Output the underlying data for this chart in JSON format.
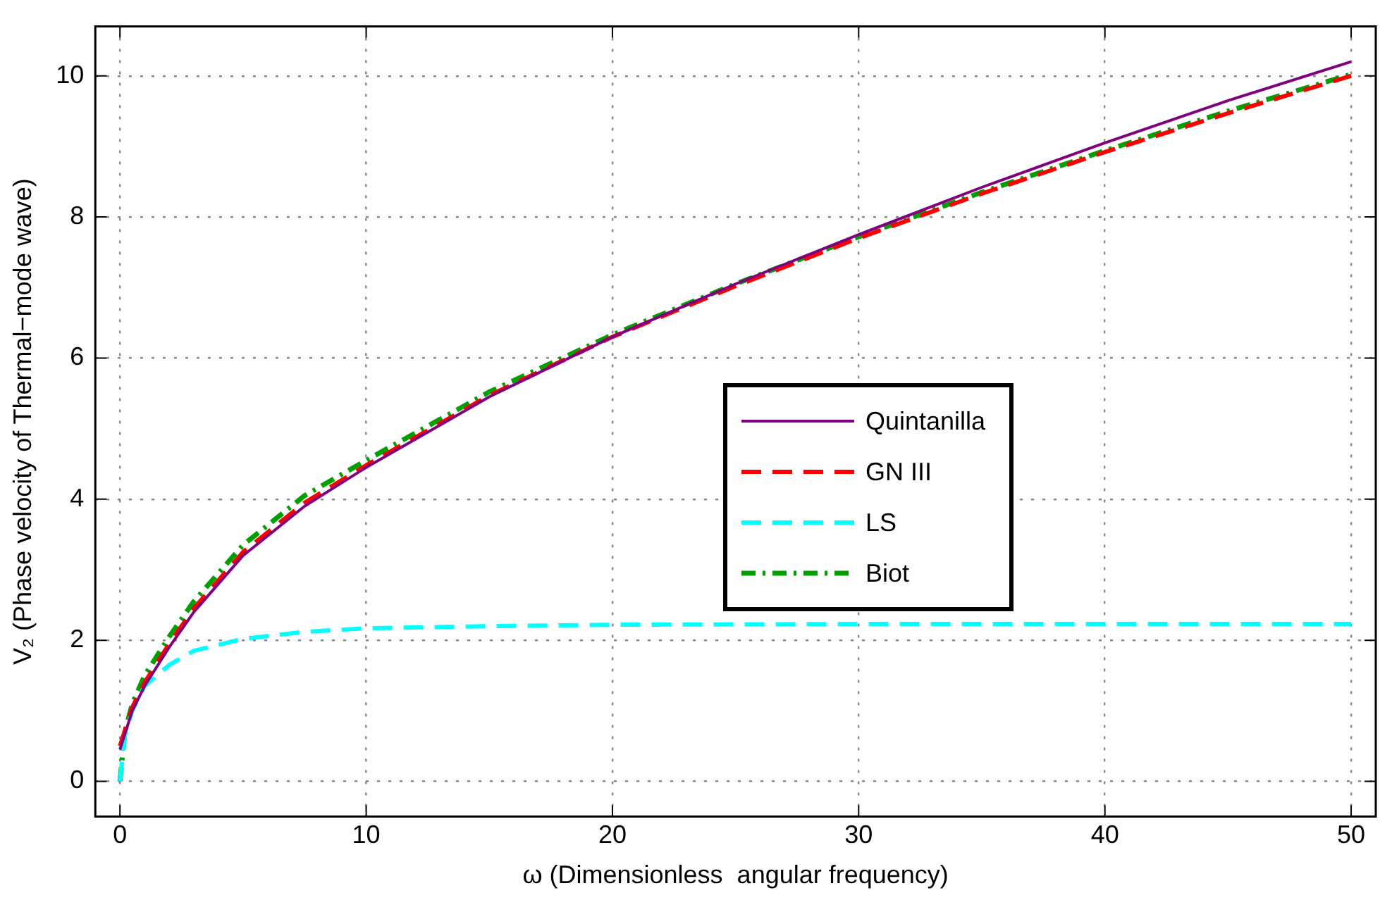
{
  "chart_data": {
    "type": "line",
    "xlabel": "ω (Dimensionless  angular frequency)",
    "ylabel": "V₂ (Phase velocity of Thermal−mode wave)",
    "xlim": [
      -1,
      51
    ],
    "ylim": [
      -0.5,
      10.7
    ],
    "xticks": [
      0,
      10,
      20,
      30,
      40,
      50
    ],
    "yticks": [
      0,
      2,
      4,
      6,
      8,
      10
    ],
    "grid": true,
    "legend": "right",
    "marker": "none",
    "series": [
      {
        "name": "Quintanilla",
        "color": "#800080",
        "line_style": "solid",
        "x": [
          0,
          0.5,
          1,
          2,
          3,
          5,
          7.5,
          10,
          15,
          20,
          25,
          30,
          35,
          40,
          45,
          50
        ],
        "values": [
          0.45,
          1.0,
          1.35,
          1.9,
          2.4,
          3.2,
          3.9,
          4.45,
          5.45,
          6.3,
          7.05,
          7.75,
          8.42,
          9.05,
          9.65,
          10.2
        ]
      },
      {
        "name": "GN III",
        "color": "#ff0000",
        "line_style": "dashed",
        "x": [
          0,
          0.5,
          1,
          2,
          3,
          5,
          7.5,
          10,
          15,
          20,
          25,
          30,
          35,
          40,
          45,
          50
        ],
        "values": [
          0.5,
          1.05,
          1.4,
          1.95,
          2.45,
          3.25,
          3.95,
          4.48,
          5.47,
          6.3,
          7.02,
          7.7,
          8.33,
          8.92,
          9.47,
          10.0
        ]
      },
      {
        "name": "LS",
        "color": "#00ffff",
        "line_style": "dashed",
        "x": [
          0,
          0.2,
          0.5,
          1,
          2,
          3,
          5,
          7.5,
          10,
          15,
          20,
          30,
          40,
          50
        ],
        "values": [
          0,
          0.65,
          1.0,
          1.35,
          1.65,
          1.85,
          2.02,
          2.12,
          2.17,
          2.2,
          2.22,
          2.23,
          2.23,
          2.23
        ]
      },
      {
        "name": "Biot",
        "color": "#00a000",
        "line_style": "dashdot",
        "x": [
          0,
          0.2,
          0.5,
          1,
          2,
          3,
          5,
          7.5,
          10,
          15,
          20,
          25,
          30,
          35,
          40,
          45,
          50
        ],
        "values": [
          0,
          0.7,
          1.1,
          1.5,
          2.05,
          2.55,
          3.35,
          4.05,
          4.55,
          5.52,
          6.33,
          7.05,
          7.72,
          8.35,
          8.94,
          9.5,
          10.02
        ]
      }
    ]
  }
}
